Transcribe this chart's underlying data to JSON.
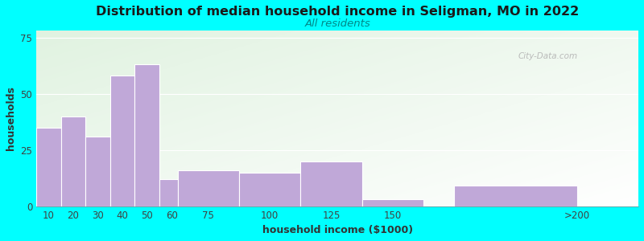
{
  "title": "Distribution of median household income in Seligman, MO in 2022",
  "subtitle": "All residents",
  "xlabel": "household income ($1000)",
  "ylabel": "households",
  "title_fontsize": 11.5,
  "subtitle_fontsize": 9.5,
  "label_fontsize": 9,
  "tick_fontsize": 8.5,
  "background_color": "#00FFFF",
  "bar_color": "#c0a8d8",
  "bar_edge_color": "#ffffff",
  "categories": [
    "10",
    "20",
    "30",
    "40",
    "50",
    "60",
    "75",
    "100",
    "125",
    "150",
    ">200"
  ],
  "values": [
    35,
    40,
    31,
    58,
    63,
    12,
    16,
    15,
    20,
    3,
    9
  ],
  "left_edges": [
    5,
    15,
    25,
    35,
    45,
    55,
    62.5,
    87.5,
    112.5,
    137.5,
    175
  ],
  "widths": [
    10,
    10,
    10,
    10,
    10,
    7.5,
    25,
    25,
    25,
    25,
    50
  ],
  "tick_positions": [
    10,
    20,
    30,
    40,
    50,
    60,
    75,
    100,
    125,
    150,
    225
  ],
  "xlim": [
    5,
    250
  ],
  "ylim": [
    0,
    78
  ],
  "yticks": [
    0,
    25,
    50,
    75
  ],
  "watermark": "City-Data.com"
}
